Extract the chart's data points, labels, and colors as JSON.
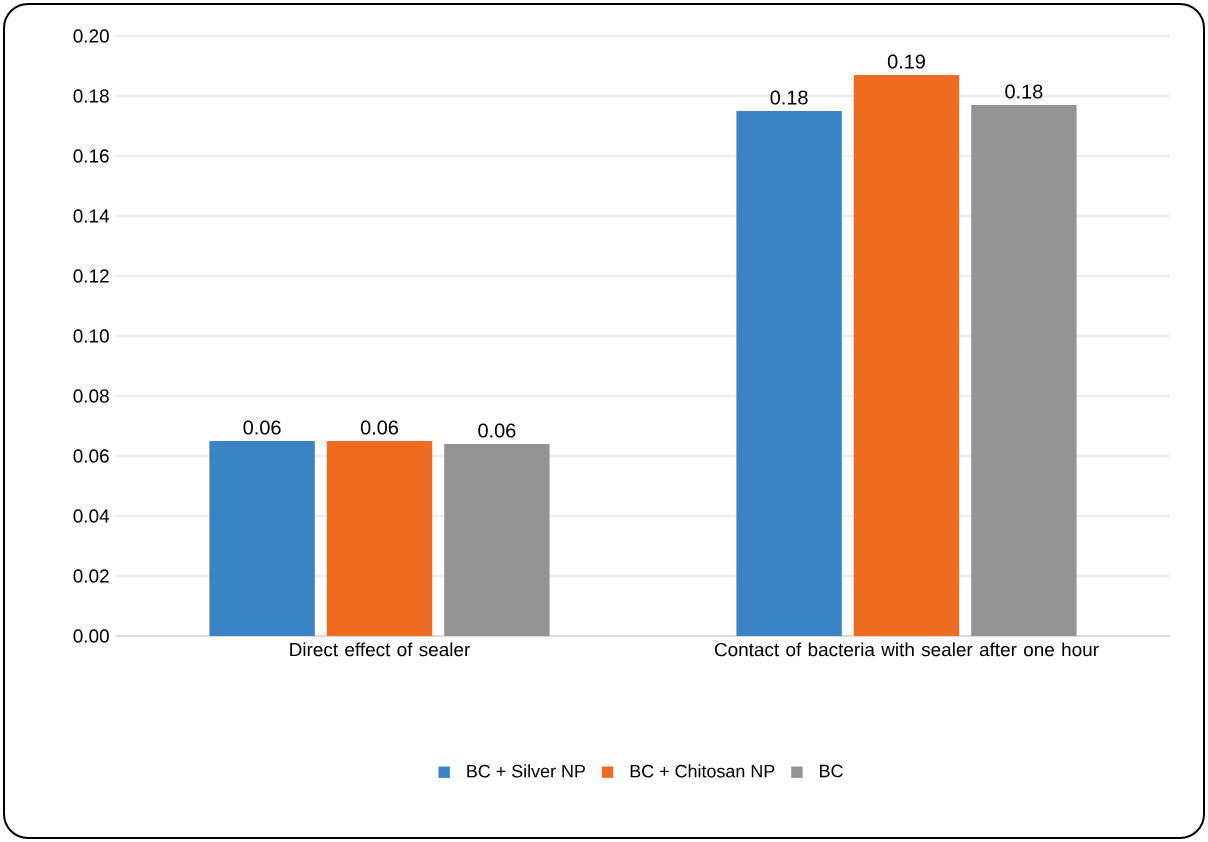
{
  "chart_data": {
    "type": "bar",
    "categories": [
      "Direct effect of sealer",
      "Contact of bacteria with sealer after one hour"
    ],
    "series": [
      {
        "name": "BC + Silver NP",
        "color": "#3a84c6",
        "values": [
          0.065,
          0.175
        ],
        "value_labels": [
          "0.06",
          "0.18"
        ]
      },
      {
        "name": "BC + Chitosan NP",
        "color": "#ee6c22",
        "values": [
          0.065,
          0.187
        ],
        "value_labels": [
          "0.06",
          "0.19"
        ]
      },
      {
        "name": "BC",
        "color": "#949494",
        "values": [
          0.064,
          0.177
        ],
        "value_labels": [
          "0.06",
          "0.18"
        ]
      }
    ],
    "ylim": [
      0,
      0.2
    ],
    "yticks": [
      {
        "value": 0,
        "label": "0.00"
      },
      {
        "value": 0.02,
        "label": "0.02"
      },
      {
        "value": 0.04,
        "label": "0.04"
      },
      {
        "value": 0.06,
        "label": "0.06"
      },
      {
        "value": 0.08,
        "label": "0.08"
      },
      {
        "value": 0.1,
        "label": "0.10"
      },
      {
        "value": 0.12,
        "label": "0.12"
      },
      {
        "value": 0.14,
        "label": "0.14"
      },
      {
        "value": 0.16,
        "label": "0.16"
      },
      {
        "value": 0.18,
        "label": "0.18"
      },
      {
        "value": 0.2,
        "label": "0.20"
      }
    ],
    "grid": "y",
    "legend": "bottom"
  }
}
